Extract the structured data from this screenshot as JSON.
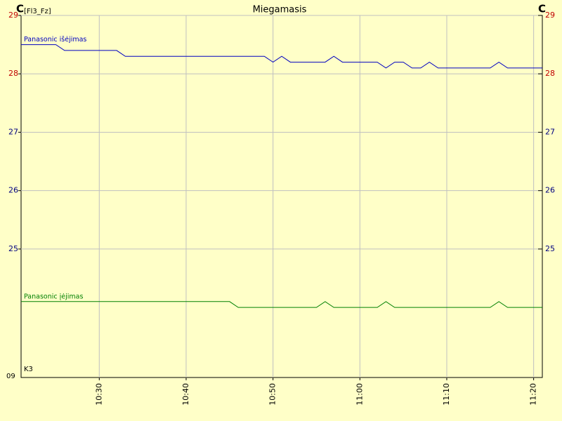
{
  "chart_data": {
    "type": "line",
    "title": "Miegamasis",
    "y_label": "C",
    "y_label_sub": "[Fl3_Fz]",
    "y2_label": "C",
    "annotations": [
      "K3",
      "09"
    ],
    "x": [
      "10:21",
      "10:25",
      "10:26",
      "10:32",
      "10:33",
      "10:45",
      "10:46",
      "10:49",
      "10:50",
      "10:51",
      "10:52",
      "10:55",
      "10:56",
      "10:57",
      "10:58",
      "11:02",
      "11:03",
      "11:04",
      "11:05",
      "11:06",
      "11:07",
      "11:08",
      "11:09",
      "11:15",
      "11:16",
      "11:17",
      "11:21"
    ],
    "series": [
      {
        "name": "Panasonic išėjimas",
        "color": "#0000c0",
        "values": [
          28.5,
          28.5,
          28.4,
          28.4,
          28.3,
          28.3,
          28.3,
          28.3,
          28.2,
          28.3,
          28.2,
          28.2,
          28.2,
          28.3,
          28.2,
          28.2,
          28.1,
          28.2,
          28.2,
          28.1,
          28.1,
          28.2,
          28.1,
          28.1,
          28.2,
          28.1,
          28.1
        ]
      },
      {
        "name": "Panasonic įėjimas",
        "color": "#008000",
        "values": [
          24.1,
          24.1,
          24.1,
          24.1,
          24.1,
          24.1,
          24.0,
          24.0,
          24.0,
          24.0,
          24.0,
          24.0,
          24.1,
          24.0,
          24.0,
          24.0,
          24.1,
          24.0,
          24.0,
          24.0,
          24.0,
          24.0,
          24.0,
          24.0,
          24.1,
          24.0,
          24.0
        ]
      }
    ],
    "xlim": [
      "10:21",
      "11:21"
    ],
    "xticks": [
      "10:30",
      "10:40",
      "10:50",
      "11:00",
      "11:10",
      "11:20"
    ],
    "ylim": [
      22.8,
      29
    ],
    "yticks": [
      25,
      26,
      27,
      28,
      29
    ],
    "ytick_colors": [
      "#000080",
      "#000080",
      "#000080",
      "#c00000",
      "#c00000"
    ],
    "grid": true,
    "background": "#ffffc8",
    "grid_color": "#c0c0c0"
  }
}
